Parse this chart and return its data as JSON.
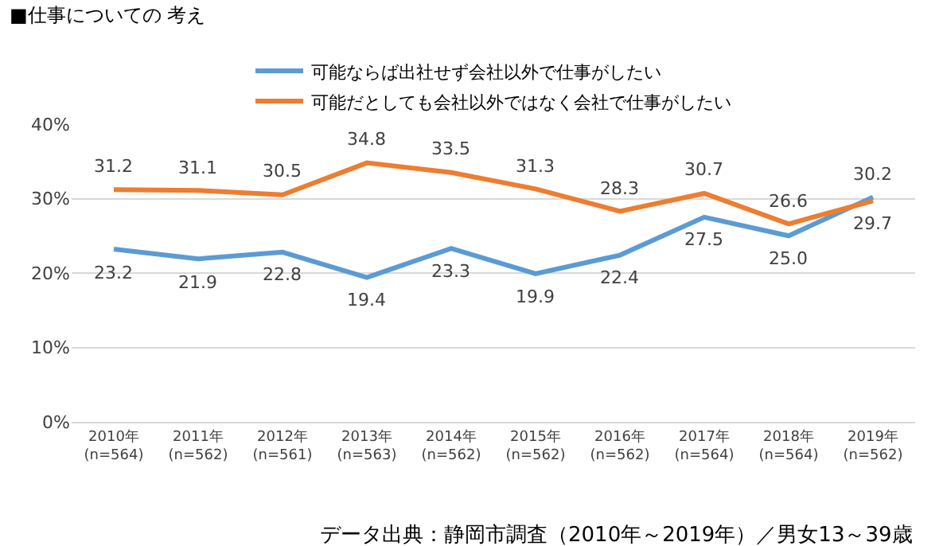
{
  "chart_data": {
    "type": "line",
    "title": "■仕事についての 考え",
    "categories": [
      "2010年\n(n=564)",
      "2011年\n(n=562)",
      "2012年\n(n=561)",
      "2013年\n(n=563)",
      "2014年\n(n=562)",
      "2015年\n(n=562)",
      "2016年\n(n=562)",
      "2017年\n(n=564)",
      "2018年\n(n=564)",
      "2019年\n(n=562)"
    ],
    "series": [
      {
        "name": "可能ならば出社せず会社以外で仕事がしたい",
        "color": "#5b9bd5",
        "values": [
          23.2,
          21.9,
          22.8,
          19.4,
          23.3,
          19.9,
          22.4,
          27.5,
          25.0,
          30.2
        ],
        "value_labels": [
          "23.2",
          "21.9",
          "22.8",
          "19.4",
          "23.3",
          "19.9",
          "22.4",
          "27.5",
          "25.0",
          "30.2"
        ]
      },
      {
        "name": "可能だとしても会社以外ではなく会社で仕事がしたい",
        "color": "#ed7d31",
        "values": [
          31.2,
          31.1,
          30.5,
          34.8,
          33.5,
          31.3,
          28.3,
          30.7,
          26.6,
          29.7
        ],
        "value_labels": [
          "31.2",
          "31.1",
          "30.5",
          "34.8",
          "33.5",
          "31.3",
          "28.3",
          "30.7",
          "26.6",
          "29.7"
        ]
      }
    ],
    "ylim": [
      0,
      40
    ],
    "yticks": [
      {
        "value": 0,
        "label": "0%"
      },
      {
        "value": 10,
        "label": "10%"
      },
      {
        "value": 20,
        "label": "20%"
      },
      {
        "value": 30,
        "label": "30%"
      },
      {
        "value": 40,
        "label": "40%"
      }
    ],
    "grid": "y",
    "legend": "top",
    "marker": "none",
    "line_style": "solid",
    "annotations": [
      "データ出典：静岡市調査（2010年～2019年）／男女13～39歳"
    ]
  }
}
